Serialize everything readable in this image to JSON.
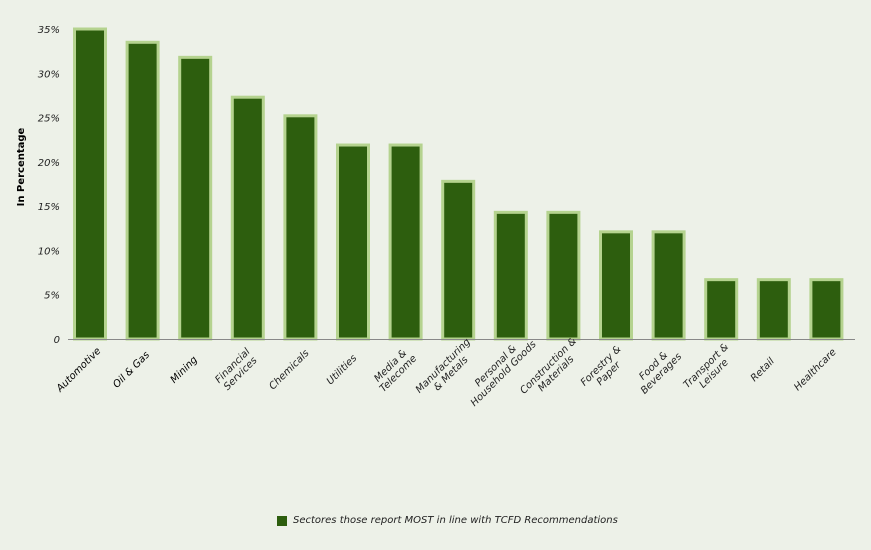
{
  "chart_data": {
    "type": "bar",
    "categories": [
      "Automotive",
      "Oil & Gas",
      "Mining",
      "Financial Services",
      "Chemicals",
      "Utilities",
      "Media & Telecome",
      "Manufacturing & Metals",
      "Personal & Household Goods",
      "Construction & Materials",
      "Forestry & Paper",
      "Food & Beverages",
      "Transport & Leisure",
      "Retail",
      "Healthcare"
    ],
    "category_lines": [
      [
        "Automotive"
      ],
      [
        "Oil & Gas"
      ],
      [
        "Mining"
      ],
      [
        "Financial",
        "Services"
      ],
      [
        "Chemicals"
      ],
      [
        "Utilities"
      ],
      [
        "Media &",
        "Telecome"
      ],
      [
        "Manufacturing",
        "& Metals"
      ],
      [
        "Personal &",
        "Household Goods"
      ],
      [
        "Construction &",
        "Materials"
      ],
      [
        "Forestry &",
        "Paper"
      ],
      [
        "Food &",
        "Beverages"
      ],
      [
        "Transport &",
        "Leisure"
      ],
      [
        "Retail"
      ],
      [
        "Healthcare"
      ]
    ],
    "series": [
      {
        "name": "Sectores those report MOST in line with TCFD Recommendations",
        "values": [
          35,
          33.5,
          31.8,
          27.3,
          25.2,
          21.9,
          21.9,
          17.8,
          14.3,
          14.3,
          12.1,
          12.1,
          6.7,
          6.7,
          6.7
        ]
      }
    ],
    "ylabel": "In Percentage",
    "xlabel": "",
    "title": "",
    "ylim": [
      0,
      35
    ],
    "yticks": [
      0,
      5,
      10,
      15,
      20,
      25,
      30,
      35
    ],
    "ytick_labels": [
      "0",
      "5%",
      "10%",
      "15%",
      "20%",
      "25%",
      "30%",
      "35%"
    ],
    "legend_position": "bottom-center",
    "colors": {
      "bar": "#2d5e0e",
      "bar_border": "#b5d38f",
      "axis": "#888888"
    }
  }
}
